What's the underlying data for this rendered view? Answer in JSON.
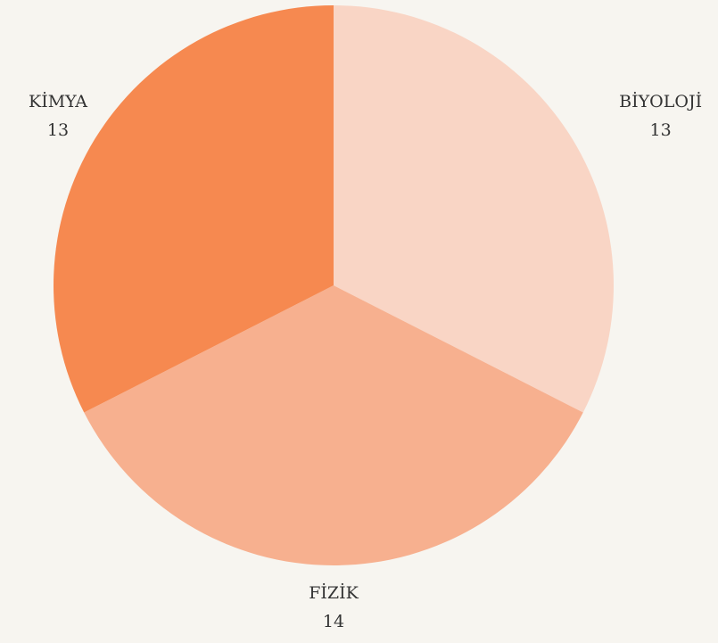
{
  "chart_data": {
    "type": "pie",
    "categories": [
      "BİYOLOJİ",
      "FİZİK",
      "KİMYA"
    ],
    "values": [
      13,
      14,
      13
    ],
    "colors": [
      "#f9d5c5",
      "#f7b08f",
      "#f68950"
    ]
  }
}
